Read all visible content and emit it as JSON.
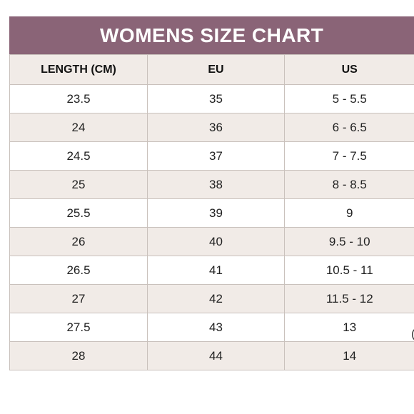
{
  "title": "WOMENS SIZE CHART",
  "headers": [
    "LENGTH (CM)",
    "EU",
    "US"
  ],
  "rows": [
    [
      "23.5",
      "35",
      "5 - 5.5"
    ],
    [
      "24",
      "36",
      "6 - 6.5"
    ],
    [
      "24.5",
      "37",
      "7 - 7.5"
    ],
    [
      "25",
      "38",
      "8 - 8.5"
    ],
    [
      "25.5",
      "39",
      "9"
    ],
    [
      "26",
      "40",
      "9.5 - 10"
    ],
    [
      "26.5",
      "41",
      "10.5 - 11"
    ],
    [
      "27",
      "42",
      "11.5 - 12"
    ],
    [
      "27.5",
      "43",
      "13"
    ],
    [
      "28",
      "44",
      "14"
    ]
  ],
  "stray_mark": "(",
  "colors": {
    "title_bg": "#8a6477",
    "stripe": "#f1ebe7",
    "border": "#c9c1bc"
  }
}
